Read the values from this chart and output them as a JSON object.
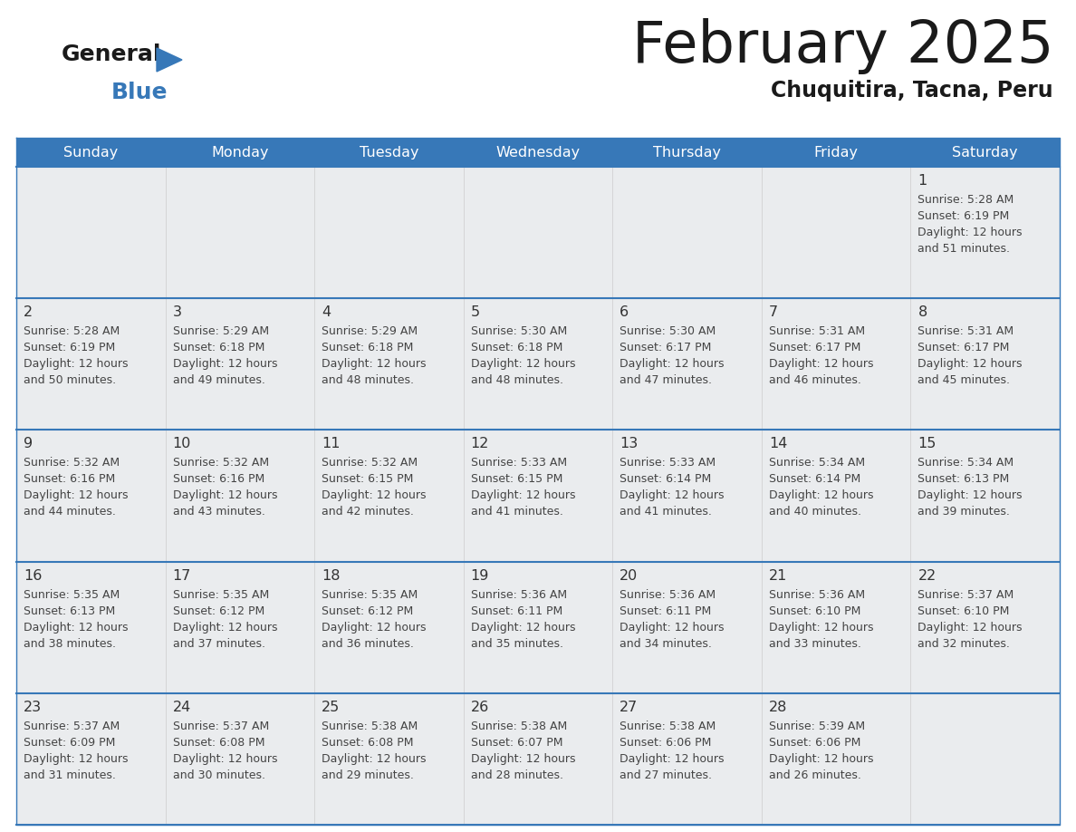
{
  "title": "February 2025",
  "subtitle": "Chuquitira, Tacna, Peru",
  "header_color": "#3778B8",
  "header_text_color": "#FFFFFF",
  "days_of_week": [
    "Sunday",
    "Monday",
    "Tuesday",
    "Wednesday",
    "Thursday",
    "Friday",
    "Saturday"
  ],
  "cell_bg_color": "#EAECEE",
  "border_color": "#3778B8",
  "text_color": "#333333",
  "day_number_color": "#333333",
  "calendar": [
    [
      null,
      null,
      null,
      null,
      null,
      null,
      {
        "day": 1,
        "sunrise": "5:28 AM",
        "sunset": "6:19 PM",
        "daylight": "12 hours and 51 minutes"
      }
    ],
    [
      {
        "day": 2,
        "sunrise": "5:28 AM",
        "sunset": "6:19 PM",
        "daylight": "12 hours and 50 minutes"
      },
      {
        "day": 3,
        "sunrise": "5:29 AM",
        "sunset": "6:18 PM",
        "daylight": "12 hours and 49 minutes"
      },
      {
        "day": 4,
        "sunrise": "5:29 AM",
        "sunset": "6:18 PM",
        "daylight": "12 hours and 48 minutes"
      },
      {
        "day": 5,
        "sunrise": "5:30 AM",
        "sunset": "6:18 PM",
        "daylight": "12 hours and 48 minutes"
      },
      {
        "day": 6,
        "sunrise": "5:30 AM",
        "sunset": "6:17 PM",
        "daylight": "12 hours and 47 minutes"
      },
      {
        "day": 7,
        "sunrise": "5:31 AM",
        "sunset": "6:17 PM",
        "daylight": "12 hours and 46 minutes"
      },
      {
        "day": 8,
        "sunrise": "5:31 AM",
        "sunset": "6:17 PM",
        "daylight": "12 hours and 45 minutes"
      }
    ],
    [
      {
        "day": 9,
        "sunrise": "5:32 AM",
        "sunset": "6:16 PM",
        "daylight": "12 hours and 44 minutes"
      },
      {
        "day": 10,
        "sunrise": "5:32 AM",
        "sunset": "6:16 PM",
        "daylight": "12 hours and 43 minutes"
      },
      {
        "day": 11,
        "sunrise": "5:32 AM",
        "sunset": "6:15 PM",
        "daylight": "12 hours and 42 minutes"
      },
      {
        "day": 12,
        "sunrise": "5:33 AM",
        "sunset": "6:15 PM",
        "daylight": "12 hours and 41 minutes"
      },
      {
        "day": 13,
        "sunrise": "5:33 AM",
        "sunset": "6:14 PM",
        "daylight": "12 hours and 41 minutes"
      },
      {
        "day": 14,
        "sunrise": "5:34 AM",
        "sunset": "6:14 PM",
        "daylight": "12 hours and 40 minutes"
      },
      {
        "day": 15,
        "sunrise": "5:34 AM",
        "sunset": "6:13 PM",
        "daylight": "12 hours and 39 minutes"
      }
    ],
    [
      {
        "day": 16,
        "sunrise": "5:35 AM",
        "sunset": "6:13 PM",
        "daylight": "12 hours and 38 minutes"
      },
      {
        "day": 17,
        "sunrise": "5:35 AM",
        "sunset": "6:12 PM",
        "daylight": "12 hours and 37 minutes"
      },
      {
        "day": 18,
        "sunrise": "5:35 AM",
        "sunset": "6:12 PM",
        "daylight": "12 hours and 36 minutes"
      },
      {
        "day": 19,
        "sunrise": "5:36 AM",
        "sunset": "6:11 PM",
        "daylight": "12 hours and 35 minutes"
      },
      {
        "day": 20,
        "sunrise": "5:36 AM",
        "sunset": "6:11 PM",
        "daylight": "12 hours and 34 minutes"
      },
      {
        "day": 21,
        "sunrise": "5:36 AM",
        "sunset": "6:10 PM",
        "daylight": "12 hours and 33 minutes"
      },
      {
        "day": 22,
        "sunrise": "5:37 AM",
        "sunset": "6:10 PM",
        "daylight": "12 hours and 32 minutes"
      }
    ],
    [
      {
        "day": 23,
        "sunrise": "5:37 AM",
        "sunset": "6:09 PM",
        "daylight": "12 hours and 31 minutes"
      },
      {
        "day": 24,
        "sunrise": "5:37 AM",
        "sunset": "6:08 PM",
        "daylight": "12 hours and 30 minutes"
      },
      {
        "day": 25,
        "sunrise": "5:38 AM",
        "sunset": "6:08 PM",
        "daylight": "12 hours and 29 minutes"
      },
      {
        "day": 26,
        "sunrise": "5:38 AM",
        "sunset": "6:07 PM",
        "daylight": "12 hours and 28 minutes"
      },
      {
        "day": 27,
        "sunrise": "5:38 AM",
        "sunset": "6:06 PM",
        "daylight": "12 hours and 27 minutes"
      },
      {
        "day": 28,
        "sunrise": "5:39 AM",
        "sunset": "6:06 PM",
        "daylight": "12 hours and 26 minutes"
      },
      null
    ]
  ]
}
